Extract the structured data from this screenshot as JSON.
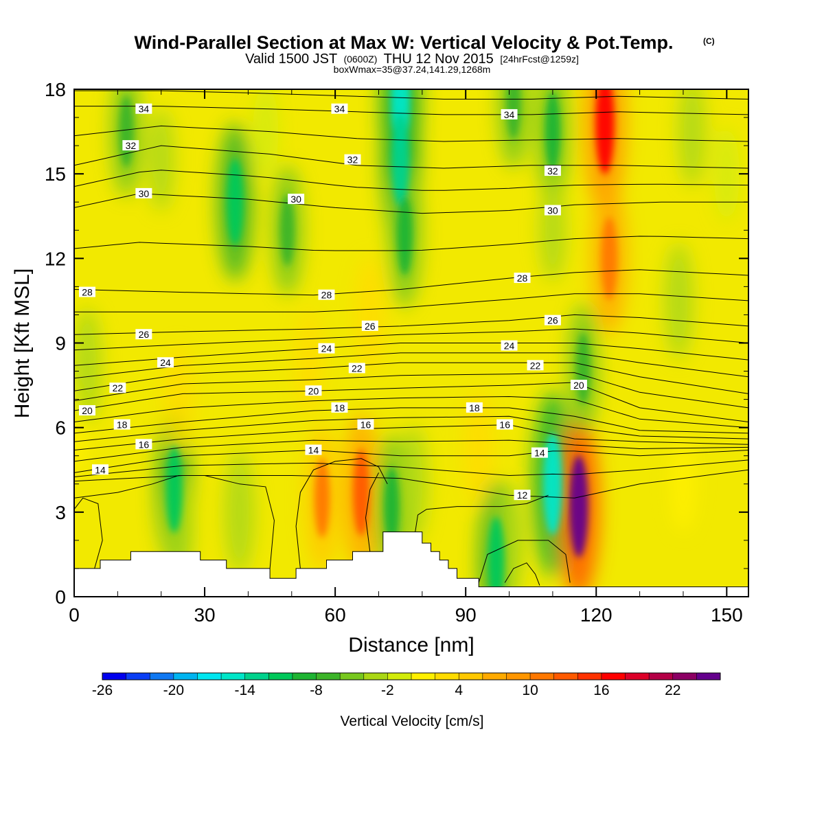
{
  "chart_data": {
    "type": "heatmap",
    "title": "Wind-Parallel Section at Max W: Vertical Velocity & Pot.Temp.",
    "title_mark": "(C)",
    "subtitle": {
      "prefix": "Valid 1500 JST",
      "utc": "(0600Z)",
      "date": "THU 12 Nov 2015",
      "forecast": "[24hrFcst@1259z]"
    },
    "box_note": "boxWmax=35@37.24,141.29,1268m",
    "xlabel": "Distance [nm]",
    "ylabel": "Height [Kft MSL]",
    "xlim": [
      0,
      155
    ],
    "ylim": [
      0,
      18
    ],
    "x_ticks": [
      0,
      30,
      60,
      90,
      120,
      150
    ],
    "y_ticks": [
      0,
      3,
      6,
      9,
      12,
      15,
      18
    ],
    "colorbar": {
      "label": "Vertical Velocity [cm/s]",
      "levels": [
        -26,
        -24,
        -22,
        -20,
        -18,
        -16,
        -14,
        -12,
        -10,
        -8,
        -6,
        -4,
        -2,
        0,
        2,
        4,
        6,
        8,
        10,
        12,
        14,
        16,
        18,
        20,
        22,
        24,
        26
      ],
      "tick_labels": [
        "-26",
        "-20",
        "-14",
        "-8",
        "-2",
        "4",
        "10",
        "16",
        "22"
      ],
      "colors": [
        "#0000ee",
        "#0a3ef5",
        "#0f78f2",
        "#00b4f0",
        "#00e6f0",
        "#00e6c8",
        "#00d28c",
        "#00c85a",
        "#1eb432",
        "#3cb428",
        "#78c81e",
        "#aad714",
        "#d2eb0a",
        "#fff000",
        "#ffdc00",
        "#ffc800",
        "#ffaa00",
        "#ff9600",
        "#ff7800",
        "#ff5a00",
        "#ff3200",
        "#ff0000",
        "#dc0028",
        "#b40046",
        "#8c0064",
        "#64008c"
      ]
    },
    "vertical_velocity_features": [
      {
        "x": 0,
        "y": 6,
        "w": 3
      },
      {
        "x": 3,
        "y": 8.2,
        "w": -6
      },
      {
        "x": 12,
        "y": 16.5,
        "w": -8
      },
      {
        "x": 20,
        "y": 15.5,
        "w": -4
      },
      {
        "x": 37,
        "y": 14,
        "w": -12
      },
      {
        "x": 49,
        "y": 13,
        "w": -8
      },
      {
        "x": 44,
        "y": 16.5,
        "w": -3
      },
      {
        "x": 23,
        "y": 3.8,
        "w": -12
      },
      {
        "x": 24,
        "y": 2.3,
        "w": -6
      },
      {
        "x": 38,
        "y": 3,
        "w": -7
      },
      {
        "x": 57,
        "y": 3.5,
        "w": 10
      },
      {
        "x": 66,
        "y": 3.7,
        "w": 12
      },
      {
        "x": 54,
        "y": 8.3,
        "w": 4
      },
      {
        "x": 68,
        "y": 10,
        "w": 6
      },
      {
        "x": 24,
        "y": 7,
        "w": 5
      },
      {
        "x": 73,
        "y": 3.2,
        "w": -10
      },
      {
        "x": 78,
        "y": 4,
        "w": -6
      },
      {
        "x": 75,
        "y": 17.6,
        "w": -16
      },
      {
        "x": 75,
        "y": 15.5,
        "w": -14
      },
      {
        "x": 76,
        "y": 12.8,
        "w": -10
      },
      {
        "x": 101,
        "y": 17.5,
        "w": -8
      },
      {
        "x": 110,
        "y": 16.5,
        "w": -10
      },
      {
        "x": 110,
        "y": 13,
        "w": -4
      },
      {
        "x": 97,
        "y": 1.3,
        "w": -12
      },
      {
        "x": 100,
        "y": 2,
        "w": -6
      },
      {
        "x": 110,
        "y": 4,
        "w": -16
      },
      {
        "x": 116,
        "y": 3.2,
        "w": 24
      },
      {
        "x": 122,
        "y": 16.8,
        "w": 16
      },
      {
        "x": 123,
        "y": 12,
        "w": 11
      },
      {
        "x": 93,
        "y": 5.3,
        "w": 6
      },
      {
        "x": 117,
        "y": 8.1,
        "w": -8
      },
      {
        "x": 139,
        "y": 10.5,
        "w": -6
      },
      {
        "x": 142,
        "y": 16.5,
        "w": -5
      },
      {
        "x": 150,
        "y": 15,
        "w": -3
      },
      {
        "x": 140,
        "y": 4,
        "w": 3
      }
    ],
    "potential_temperature_isolines": [
      {
        "value": 12,
        "points": [
          [
            0,
            4.1
          ],
          [
            25,
            4.3
          ],
          [
            50,
            4.3
          ],
          [
            75,
            4.2
          ],
          [
            100,
            3.6
          ],
          [
            115,
            3.5
          ],
          [
            130,
            4.0
          ],
          [
            155,
            4.5
          ]
        ]
      },
      {
        "value": 14,
        "points": [
          [
            0,
            4.4
          ],
          [
            25,
            5.0
          ],
          [
            55,
            5.2
          ],
          [
            75,
            5.0
          ],
          [
            100,
            5.0
          ],
          [
            112,
            5.2
          ],
          [
            130,
            5.0
          ],
          [
            155,
            5.2
          ]
        ]
      },
      {
        "value": 16,
        "points": [
          [
            0,
            5.2
          ],
          [
            25,
            5.6
          ],
          [
            55,
            5.9
          ],
          [
            75,
            6.0
          ],
          [
            100,
            6.1
          ],
          [
            115,
            5.6
          ],
          [
            130,
            5.5
          ],
          [
            155,
            5.4
          ]
        ]
      },
      {
        "value": 18,
        "points": [
          [
            0,
            5.8
          ],
          [
            25,
            6.2
          ],
          [
            55,
            6.6
          ],
          [
            75,
            6.7
          ],
          [
            100,
            6.7
          ],
          [
            115,
            6.4
          ],
          [
            130,
            5.9
          ],
          [
            155,
            5.8
          ]
        ]
      },
      {
        "value": 20,
        "points": [
          [
            0,
            6.6
          ],
          [
            25,
            7.2
          ],
          [
            55,
            7.3
          ],
          [
            75,
            7.4
          ],
          [
            100,
            7.5
          ],
          [
            115,
            7.6
          ],
          [
            130,
            6.7
          ],
          [
            155,
            6.2
          ]
        ]
      },
      {
        "value": 22,
        "points": [
          [
            0,
            7.3
          ],
          [
            25,
            7.9
          ],
          [
            55,
            8.1
          ],
          [
            75,
            8.3
          ],
          [
            100,
            8.3
          ],
          [
            115,
            8.3
          ],
          [
            130,
            7.8
          ],
          [
            155,
            7.2
          ]
        ]
      },
      {
        "value": 24,
        "points": [
          [
            0,
            8.2
          ],
          [
            25,
            8.5
          ],
          [
            55,
            8.8
          ],
          [
            75,
            9.0
          ],
          [
            100,
            9.0
          ],
          [
            115,
            9.0
          ],
          [
            130,
            8.8
          ],
          [
            155,
            8.4
          ]
        ]
      },
      {
        "value": 26,
        "points": [
          [
            0,
            9.3
          ],
          [
            25,
            9.4
          ],
          [
            55,
            9.5
          ],
          [
            75,
            9.6
          ],
          [
            100,
            9.8
          ],
          [
            115,
            10.0
          ],
          [
            130,
            9.9
          ],
          [
            155,
            9.6
          ]
        ]
      },
      {
        "value": 28,
        "points": [
          [
            0,
            10.9
          ],
          [
            25,
            10.8
          ],
          [
            55,
            10.7
          ],
          [
            75,
            10.9
          ],
          [
            100,
            11.3
          ],
          [
            115,
            11.5
          ],
          [
            130,
            11.6
          ],
          [
            155,
            11.4
          ]
        ]
      },
      {
        "value": 30,
        "points": [
          [
            0,
            13.8
          ],
          [
            15,
            14.3
          ],
          [
            40,
            14.1
          ],
          [
            60,
            13.8
          ],
          [
            80,
            13.6
          ],
          [
            100,
            13.7
          ],
          [
            115,
            13.9
          ],
          [
            135,
            14.0
          ],
          [
            155,
            14.0
          ]
        ]
      },
      {
        "value": 32,
        "points": [
          [
            0,
            15.3
          ],
          [
            20,
            16.0
          ],
          [
            45,
            15.7
          ],
          [
            65,
            15.3
          ],
          [
            85,
            15.2
          ],
          [
            105,
            15.3
          ],
          [
            125,
            15.3
          ],
          [
            155,
            15.2
          ]
        ]
      },
      {
        "value": 34,
        "points": [
          [
            0,
            17.4
          ],
          [
            20,
            17.4
          ],
          [
            45,
            17.3
          ],
          [
            65,
            17.2
          ],
          [
            85,
            17.1
          ],
          [
            105,
            17.1
          ],
          [
            125,
            17.2
          ],
          [
            155,
            17.1
          ]
        ]
      }
    ],
    "isoline_labels": [
      {
        "text": "34",
        "x": 16,
        "y": 17.3
      },
      {
        "text": "34",
        "x": 61,
        "y": 17.3
      },
      {
        "text": "34",
        "x": 100,
        "y": 17.1
      },
      {
        "text": "32",
        "x": 13,
        "y": 16.0
      },
      {
        "text": "32",
        "x": 64,
        "y": 15.5
      },
      {
        "text": "32",
        "x": 110,
        "y": 15.1
      },
      {
        "text": "30",
        "x": 16,
        "y": 14.3
      },
      {
        "text": "30",
        "x": 51,
        "y": 14.1
      },
      {
        "text": "30",
        "x": 110,
        "y": 13.7
      },
      {
        "text": "28",
        "x": 3,
        "y": 10.8
      },
      {
        "text": "28",
        "x": 58,
        "y": 10.7
      },
      {
        "text": "28",
        "x": 103,
        "y": 11.3
      },
      {
        "text": "26",
        "x": 16,
        "y": 9.3
      },
      {
        "text": "26",
        "x": 68,
        "y": 9.6
      },
      {
        "text": "26",
        "x": 110,
        "y": 9.8
      },
      {
        "text": "24",
        "x": 21,
        "y": 8.3
      },
      {
        "text": "24",
        "x": 58,
        "y": 8.8
      },
      {
        "text": "24",
        "x": 100,
        "y": 8.9
      },
      {
        "text": "22",
        "x": 10,
        "y": 7.4
      },
      {
        "text": "22",
        "x": 65,
        "y": 8.1
      },
      {
        "text": "22",
        "x": 106,
        "y": 8.2
      },
      {
        "text": "20",
        "x": 3,
        "y": 6.6
      },
      {
        "text": "20",
        "x": 55,
        "y": 7.3
      },
      {
        "text": "20",
        "x": 116,
        "y": 7.5
      },
      {
        "text": "18",
        "x": 11,
        "y": 6.1
      },
      {
        "text": "18",
        "x": 61,
        "y": 6.7
      },
      {
        "text": "18",
        "x": 92,
        "y": 6.7
      },
      {
        "text": "16",
        "x": 16,
        "y": 5.4
      },
      {
        "text": "16",
        "x": 67,
        "y": 6.1
      },
      {
        "text": "16",
        "x": 99,
        "y": 6.1
      },
      {
        "text": "14",
        "x": 6,
        "y": 4.5
      },
      {
        "text": "14",
        "x": 55,
        "y": 5.2
      },
      {
        "text": "14",
        "x": 107,
        "y": 5.1
      },
      {
        "text": "12",
        "x": 103,
        "y": 3.6
      }
    ],
    "zero_w_contours": [
      [
        [
          4.5,
          0.9
        ],
        [
          6.5,
          2.0
        ],
        [
          5.5,
          3.3
        ],
        [
          2,
          3.5
        ],
        [
          0,
          3.1
        ]
      ],
      [
        [
          45,
          1.0
        ],
        [
          46,
          2.7
        ],
        [
          44,
          3.9
        ],
        [
          38,
          4.0
        ],
        [
          30,
          4.3
        ],
        [
          24,
          4.3
        ],
        [
          18,
          4.0
        ],
        [
          10,
          3.7
        ],
        [
          0,
          3.5
        ]
      ],
      [
        [
          52,
          1.0
        ],
        [
          51,
          2.5
        ],
        [
          52,
          3.7
        ],
        [
          55,
          4.5
        ],
        [
          60,
          4.8
        ],
        [
          66,
          4.9
        ],
        [
          70,
          4.6
        ],
        [
          72,
          4.0
        ]
      ],
      [
        [
          68,
          1.6
        ],
        [
          67,
          2.8
        ],
        [
          68,
          3.8
        ],
        [
          70,
          4.4
        ]
      ],
      [
        [
          78,
          1.9
        ],
        [
          79,
          2.9
        ],
        [
          81,
          3.1
        ],
        [
          88,
          3.2
        ],
        [
          98,
          3.2
        ],
        [
          104,
          3.3
        ],
        [
          109,
          3.6
        ]
      ],
      [
        [
          93,
          0.5
        ],
        [
          95,
          1.5
        ],
        [
          102,
          2.0
        ],
        [
          109,
          2.0
        ],
        [
          113,
          1.5
        ],
        [
          114,
          0.5
        ]
      ],
      [
        [
          99,
          0.5
        ],
        [
          101,
          1.0
        ],
        [
          104,
          1.2
        ],
        [
          106,
          0.8
        ],
        [
          107,
          0.4
        ]
      ]
    ],
    "terrain": [
      [
        0,
        1.0
      ],
      [
        6,
        1.0
      ],
      [
        6,
        1.3
      ],
      [
        13,
        1.3
      ],
      [
        13,
        1.6
      ],
      [
        29,
        1.6
      ],
      [
        29,
        1.3
      ],
      [
        35,
        1.3
      ],
      [
        35,
        1.0
      ],
      [
        45,
        1.0
      ],
      [
        45,
        0.65
      ],
      [
        51,
        0.65
      ],
      [
        51,
        1.0
      ],
      [
        58,
        1.0
      ],
      [
        58,
        1.3
      ],
      [
        64,
        1.3
      ],
      [
        64,
        1.6
      ],
      [
        71,
        1.6
      ],
      [
        71,
        2.3
      ],
      [
        80,
        2.3
      ],
      [
        80,
        1.9
      ],
      [
        82,
        1.9
      ],
      [
        82,
        1.6
      ],
      [
        84,
        1.6
      ],
      [
        84,
        1.3
      ],
      [
        86,
        1.3
      ],
      [
        86,
        1.0
      ],
      [
        88,
        1.0
      ],
      [
        88,
        0.65
      ],
      [
        93,
        0.65
      ],
      [
        93,
        0.35
      ],
      [
        155,
        0.35
      ]
    ]
  }
}
